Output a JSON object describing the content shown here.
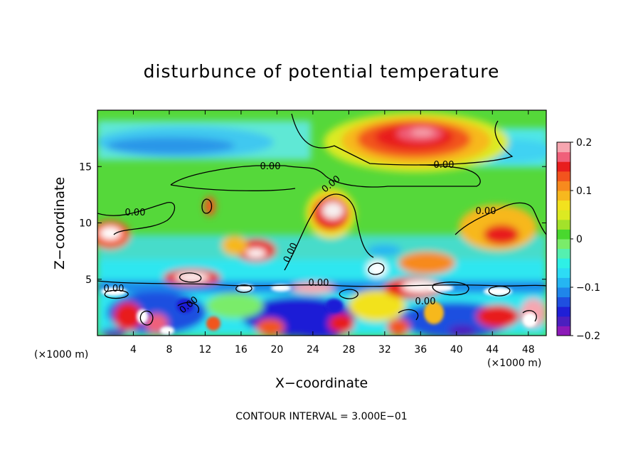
{
  "chart_data": {
    "type": "heatmap",
    "title": "disturbunce of potential temperature",
    "xlabel": "X−coordinate",
    "ylabel": "Z−coordinate",
    "x_unit_left": "(×1000 m)",
    "x_unit_right": "(×1000 m)",
    "footer": "CONTOUR INTERVAL =  3.000E−01",
    "xlim": [
      0,
      50
    ],
    "ylim": [
      0,
      20
    ],
    "x_ticks": [
      4,
      8,
      12,
      16,
      20,
      24,
      28,
      32,
      36,
      40,
      44,
      48
    ],
    "x_tick_labels": [
      "4",
      "8",
      "12",
      "16",
      "20",
      "24",
      "28",
      "32",
      "36",
      "40",
      "44",
      "48"
    ],
    "y_ticks": [
      5,
      10,
      15
    ],
    "y_tick_labels": [
      "5",
      "10",
      "15"
    ],
    "colorbar": {
      "min": -0.2,
      "max": 0.2,
      "ticks": [
        0.2,
        0.1,
        0,
        -0.1,
        -0.2
      ],
      "tick_labels": [
        "0.2",
        "0.1",
        "0",
        "−0.1",
        "−0.2"
      ],
      "colors": [
        "#8c1ab8",
        "#4b1fbf",
        "#1f1fd6",
        "#1f4fe0",
        "#1f86ea",
        "#25b6f2",
        "#2ddcf5",
        "#2ef0e6",
        "#55f0b0",
        "#7aec6a",
        "#49d82e",
        "#a3e22a",
        "#dcea22",
        "#f2e21e",
        "#f7b81e",
        "#f78a1e",
        "#f2541e",
        "#e81e1e",
        "#f0607a",
        "#f6a6b0"
      ]
    },
    "contour_interval": 0.3,
    "contour_labels": [
      "0.00",
      "0.00",
      "0.00",
      "0.00",
      "0.00",
      "0.00",
      "0.00",
      "0.00",
      "0.00",
      "0.00"
    ],
    "features": [
      {
        "name": "upper-warm-anomaly",
        "x": 36,
        "z": 18,
        "value": 0.2
      },
      {
        "name": "upper-cold-anomaly",
        "x": 12,
        "z": 17,
        "value": -0.08
      },
      {
        "name": "mid-warm-plume",
        "x": 25,
        "z": 11,
        "value": 0.18
      },
      {
        "name": "low-level-turbulence",
        "x": 25,
        "z": 2.5,
        "value": -0.2
      }
    ]
  }
}
